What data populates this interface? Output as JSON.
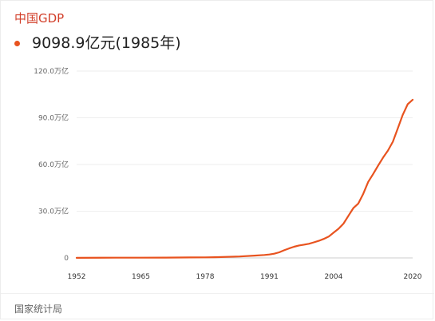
{
  "header": {
    "title": "中国GDP",
    "value_text": "9098.9亿元(1985年)"
  },
  "footer": {
    "source": "国家统计局"
  },
  "accent_color": "#e8531f",
  "title_color": "#d23f2a",
  "chart": {
    "ytick_labels": [
      "0",
      "30.0万亿",
      "60.0万亿",
      "90.0万亿",
      "120.0万亿"
    ],
    "ytick_values": [
      0,
      30,
      60,
      90,
      120
    ],
    "xtick_labels": [
      "1952",
      "1965",
      "1978",
      "1991",
      "2004",
      "2020"
    ],
    "xtick_values": [
      1952,
      1965,
      1978,
      1991,
      2004,
      2020
    ],
    "x_range": [
      1952,
      2020
    ],
    "y_range": [
      0,
      120
    ],
    "line_color": "#e8531f",
    "points": [
      [
        1952,
        0.07
      ],
      [
        1960,
        0.15
      ],
      [
        1965,
        0.17
      ],
      [
        1970,
        0.23
      ],
      [
        1975,
        0.3
      ],
      [
        1978,
        0.37
      ],
      [
        1980,
        0.46
      ],
      [
        1985,
        0.91
      ],
      [
        1988,
        1.5
      ],
      [
        1990,
        1.9
      ],
      [
        1991,
        2.2
      ],
      [
        1992,
        2.7
      ],
      [
        1993,
        3.6
      ],
      [
        1994,
        4.9
      ],
      [
        1995,
        6.1
      ],
      [
        1996,
        7.2
      ],
      [
        1997,
        8.0
      ],
      [
        1998,
        8.5
      ],
      [
        1999,
        9.1
      ],
      [
        2000,
        10.0
      ],
      [
        2001,
        11.0
      ],
      [
        2002,
        12.2
      ],
      [
        2003,
        13.7
      ],
      [
        2004,
        16.2
      ],
      [
        2005,
        18.7
      ],
      [
        2006,
        22.0
      ],
      [
        2007,
        27.0
      ],
      [
        2008,
        32.0
      ],
      [
        2009,
        34.9
      ],
      [
        2010,
        41.2
      ],
      [
        2011,
        48.8
      ],
      [
        2012,
        53.9
      ],
      [
        2013,
        59.3
      ],
      [
        2014,
        64.4
      ],
      [
        2015,
        68.9
      ],
      [
        2016,
        74.6
      ],
      [
        2017,
        83.2
      ],
      [
        2018,
        91.9
      ],
      [
        2019,
        98.7
      ],
      [
        2020,
        101.6
      ]
    ]
  }
}
